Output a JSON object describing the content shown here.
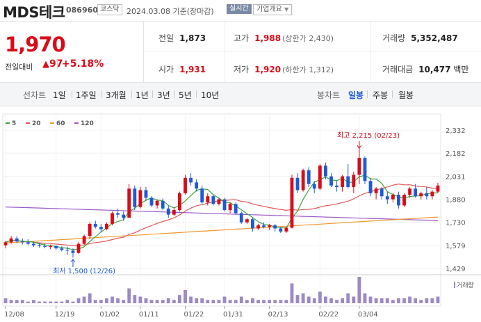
{
  "header": {
    "name": "MDS테크",
    "code": "086960",
    "market": "코스닥",
    "date_text": "2024.03.08 기준(장마감)",
    "realtime_label": "실시간",
    "company_info_label": "기업개요"
  },
  "price": {
    "current": "1,970",
    "change_label": "전일대비",
    "change_value": "97",
    "change_pct": "+5.18%"
  },
  "stats": {
    "prev_label": "전일",
    "prev_value": "1,873",
    "high_label": "고가",
    "high_value": "1,988",
    "high_limit": "(상한가 2,430)",
    "volume_label": "거래량",
    "volume_value": "5,352,487",
    "open_label": "시가",
    "open_value": "1,931",
    "low_label": "저가",
    "low_value": "1,920",
    "low_limit": "(하한가 1,312)",
    "amount_label": "거래대금",
    "amount_value": "10,477",
    "amount_unit": "백만"
  },
  "tabs": {
    "line_label": "선차트",
    "line_items": [
      "1일",
      "1주일",
      "3개월",
      "1년",
      "3년",
      "5년",
      "10년"
    ],
    "candle_label": "봉차트",
    "candle_items": [
      "일봉",
      "주봉",
      "월봉"
    ],
    "candle_selected": 0
  },
  "colors": {
    "up": "#d80c18",
    "down": "#1f5ad6",
    "ma5": "#3aa63a",
    "ma20": "#e05757",
    "ma60": "#f0982c",
    "ma120": "#9b59c9"
  },
  "chart_data": {
    "type": "candlestick",
    "legend": [
      {
        "name": "5",
        "color": "#3aa63a"
      },
      {
        "name": "20",
        "color": "#e05757"
      },
      {
        "name": "60",
        "color": "#f0982c"
      },
      {
        "name": "120",
        "color": "#9b59c9"
      }
    ],
    "y_ticks": [
      "2,332",
      "2,182",
      "2,031",
      "1,880",
      "1,730",
      "1,579",
      "1,429"
    ],
    "y_range": [
      1429,
      2332
    ],
    "x_labels": [
      "12/08",
      "12/19",
      "01/02",
      "01/11",
      "01/22",
      "01/31",
      "02/13",
      "02/22",
      "03/04"
    ],
    "volume_label": "거래량",
    "high_annotation": "최고 2,215 (02/23)",
    "low_annotation": "최저 1,500 (12/26)",
    "candles": [
      [
        1580,
        1610,
        1560,
        1600
      ],
      [
        1600,
        1640,
        1590,
        1625
      ],
      [
        1625,
        1640,
        1595,
        1605
      ],
      [
        1605,
        1625,
        1585,
        1600
      ],
      [
        1600,
        1620,
        1580,
        1590
      ],
      [
        1590,
        1605,
        1570,
        1580
      ],
      [
        1580,
        1595,
        1565,
        1575
      ],
      [
        1575,
        1590,
        1560,
        1570
      ],
      [
        1570,
        1585,
        1555,
        1575
      ],
      [
        1575,
        1580,
        1550,
        1560
      ],
      [
        1560,
        1575,
        1540,
        1550
      ],
      [
        1550,
        1570,
        1520,
        1545
      ],
      [
        1545,
        1560,
        1500,
        1530
      ],
      [
        1530,
        1600,
        1525,
        1590
      ],
      [
        1590,
        1650,
        1585,
        1640
      ],
      [
        1640,
        1730,
        1620,
        1720
      ],
      [
        1720,
        1740,
        1690,
        1700
      ],
      [
        1700,
        1720,
        1665,
        1685
      ],
      [
        1685,
        1730,
        1680,
        1720
      ],
      [
        1720,
        1800,
        1710,
        1790
      ],
      [
        1790,
        1820,
        1760,
        1780
      ],
      [
        1780,
        1800,
        1740,
        1760
      ],
      [
        1760,
        1980,
        1760,
        1950
      ],
      [
        1950,
        1970,
        1810,
        1830
      ],
      [
        1830,
        1960,
        1820,
        1940
      ],
      [
        1940,
        1960,
        1870,
        1890
      ],
      [
        1890,
        1900,
        1830,
        1840
      ],
      [
        1840,
        1880,
        1820,
        1870
      ],
      [
        1870,
        1885,
        1810,
        1820
      ],
      [
        1820,
        1840,
        1760,
        1780
      ],
      [
        1780,
        1830,
        1770,
        1810
      ],
      [
        1810,
        1930,
        1800,
        1920
      ],
      [
        1920,
        2040,
        1910,
        2020
      ],
      [
        2020,
        2050,
        1970,
        1990
      ],
      [
        1990,
        2010,
        1930,
        1950
      ],
      [
        1950,
        1970,
        1850,
        1860
      ],
      [
        1860,
        1920,
        1840,
        1900
      ],
      [
        1900,
        1910,
        1840,
        1850
      ],
      [
        1850,
        1890,
        1840,
        1880
      ],
      [
        1880,
        1890,
        1800,
        1810
      ],
      [
        1810,
        1860,
        1790,
        1850
      ],
      [
        1850,
        1860,
        1780,
        1790
      ],
      [
        1790,
        1800,
        1720,
        1730
      ],
      [
        1730,
        1760,
        1720,
        1750
      ],
      [
        1750,
        1760,
        1670,
        1690
      ],
      [
        1690,
        1720,
        1680,
        1710
      ],
      [
        1710,
        1730,
        1690,
        1700
      ],
      [
        1700,
        1720,
        1680,
        1710
      ],
      [
        1710,
        1720,
        1670,
        1690
      ],
      [
        1690,
        1700,
        1660,
        1670
      ],
      [
        1670,
        1700,
        1660,
        1695
      ],
      [
        1695,
        2040,
        1690,
        2020
      ],
      [
        2020,
        2050,
        1920,
        1940
      ],
      [
        1940,
        2080,
        1930,
        2070
      ],
      [
        2070,
        2090,
        1960,
        1980
      ],
      [
        1980,
        2000,
        1920,
        1950
      ],
      [
        1950,
        2110,
        1940,
        2100
      ],
      [
        2100,
        2120,
        2010,
        2030
      ],
      [
        2030,
        2050,
        1960,
        1970
      ],
      [
        1970,
        2000,
        1930,
        1960
      ],
      [
        1960,
        2040,
        1930,
        2030
      ],
      [
        2030,
        2110,
        1950,
        1960
      ],
      [
        1960,
        2060,
        1920,
        2040
      ],
      [
        2040,
        2215,
        1980,
        2150
      ],
      [
        2150,
        2160,
        1980,
        2000
      ],
      [
        2000,
        2020,
        1900,
        1920
      ],
      [
        1920,
        1960,
        1880,
        1950
      ],
      [
        1950,
        1960,
        1880,
        1900
      ],
      [
        1900,
        1930,
        1850,
        1880
      ],
      [
        1880,
        1920,
        1860,
        1910
      ],
      [
        1910,
        1930,
        1820,
        1840
      ],
      [
        1840,
        1920,
        1830,
        1910
      ],
      [
        1910,
        1960,
        1890,
        1950
      ],
      [
        1950,
        1980,
        1890,
        1900
      ],
      [
        1900,
        1930,
        1880,
        1920
      ],
      [
        1920,
        1960,
        1880,
        1900
      ],
      [
        1900,
        1940,
        1880,
        1930
      ],
      [
        1930,
        1988,
        1920,
        1970
      ]
    ],
    "volumes": [
      3,
      2,
      2,
      2,
      1,
      2,
      1,
      1,
      1,
      1,
      1,
      2,
      1,
      3,
      4,
      6,
      2,
      2,
      3,
      4,
      3,
      2,
      9,
      5,
      4,
      3,
      2,
      2,
      2,
      3,
      2,
      5,
      8,
      4,
      3,
      3,
      2,
      2,
      2,
      4,
      2,
      2,
      4,
      2,
      3,
      2,
      2,
      2,
      2,
      2,
      2,
      12,
      5,
      6,
      4,
      3,
      7,
      4,
      3,
      2,
      3,
      6,
      4,
      16,
      6,
      4,
      3,
      3,
      3,
      2,
      3,
      3,
      4,
      3,
      2,
      3,
      3,
      4
    ]
  }
}
